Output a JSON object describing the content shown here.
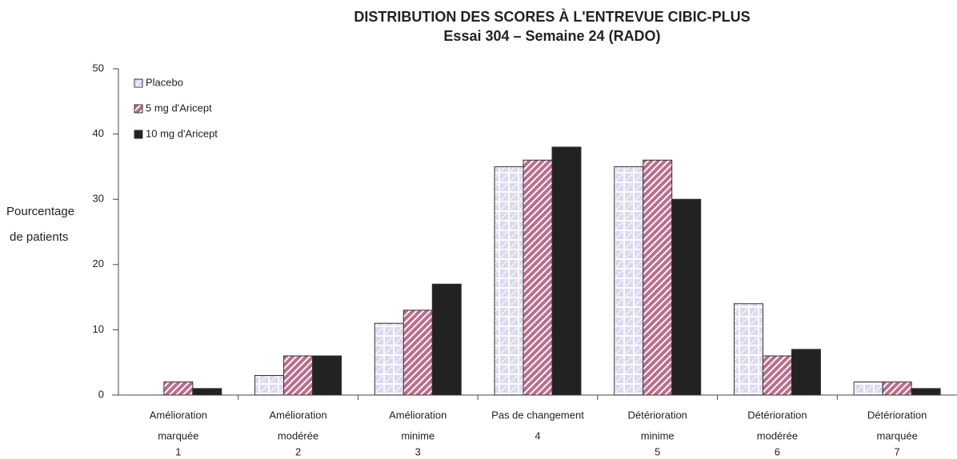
{
  "chart_data": {
    "type": "bar",
    "title": [
      "DISTRIBUTION DES SCORES À L'ENTREVUE CIBIC-PLUS",
      "Essai 304 – Semaine 24 (RADO)"
    ],
    "y_label": [
      "Pourcentage",
      "de patients"
    ],
    "categories": [
      [
        "Amélioration",
        "marquée",
        "1"
      ],
      [
        "Amélioration",
        "modérée",
        "2"
      ],
      [
        "Amélioration",
        "minime",
        "3"
      ],
      [
        "Pas de changement",
        "4"
      ],
      [
        "Détérioration",
        "minime",
        "5"
      ],
      [
        "Détérioration",
        "modérée",
        "6"
      ],
      [
        "Détérioration",
        "marquée",
        "7"
      ]
    ],
    "series": [
      {
        "name": "Placebo",
        "color": "#dcd8f0",
        "values": [
          0,
          3,
          11,
          35,
          35,
          14,
          2
        ]
      },
      {
        "name": "5 mg d'Aricept",
        "color": "#c06a8a",
        "values": [
          2,
          6,
          13,
          36,
          36,
          6,
          2
        ]
      },
      {
        "name": "10 mg d'Aricept",
        "color": "#222222",
        "values": [
          1,
          6,
          17,
          38,
          30,
          7,
          1
        ]
      }
    ],
    "ylim": [
      0,
      50
    ],
    "yticks": [
      0,
      10,
      20,
      30,
      40,
      50
    ],
    "grid": false,
    "legend": "top-left"
  }
}
